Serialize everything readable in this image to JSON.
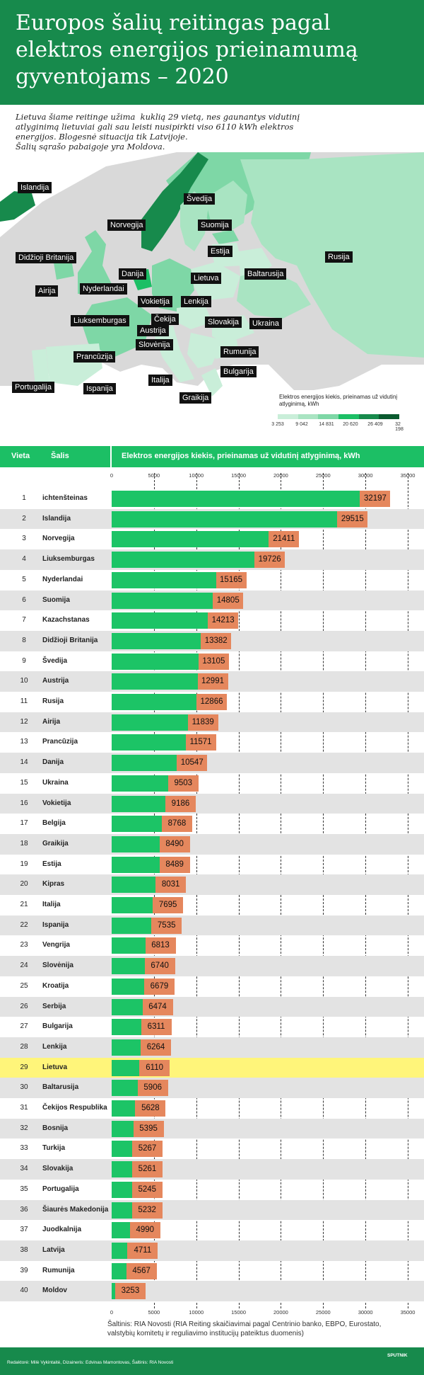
{
  "header": {
    "title": "Europos šalių reitingas pagal elektros energijos prieinamumą gyventojams – 2020"
  },
  "intro": {
    "lines": [
      "Lietuva šiame reitinge užima  kuklią 29 vietą, nes gaunantys vidutinį",
      "atlyginimą lietuviai gali sau leisti nusipirkti viso 6110 kWh elektros",
      "energijos. Blogesnė situacija tik Latvijoje.",
      "Šalių sąrašo pabaigoje yra Moldova."
    ]
  },
  "map": {
    "labels": [
      "Islandija",
      "Švedija",
      "Norvegija",
      "Suomija",
      "Rusija",
      "Estija",
      "Didžioji Britanija",
      "Danija",
      "Baltarusija",
      "Airija",
      "Nyderlandai",
      "Lietuva",
      "Vokietija",
      "Lenkija",
      "Čekija",
      "Liuksemburgas",
      "Slovakija",
      "Ukraina",
      "Austrija",
      "Slovėnija",
      "Rumunija",
      "Prancūzija",
      "Bulgarija",
      "Italija",
      "Portugalija",
      "Ispanija",
      "Graikija"
    ],
    "legend_title": "Elektros energijos kiekis, prieinamas už vidutinį atlyginimą, kWh",
    "legend_ticks": [
      "3 253",
      "9 042",
      "14 831",
      "20 620",
      "26 409",
      "32 198"
    ],
    "legend_colors": [
      "#c9eed9",
      "#a9e4c2",
      "#7ed7a6",
      "#1cbf65",
      "#178a4c",
      "#0a5a2f"
    ]
  },
  "table": {
    "col_rank": "Vieta",
    "col_country": "Šalis",
    "col_value": "Elektros energijos kiekis, prieinamas už vidutinį atlyginimą, kWh"
  },
  "colors": {
    "bar": "#1cc466",
    "label": "#e5875d",
    "highlight": "#fff57a",
    "header": "#178a4c"
  },
  "chart_data": {
    "type": "bar",
    "title": "Elektros energijos kiekis, prieinamas už vidutinį atlyginimą, kWh",
    "xlim": [
      0,
      35000
    ],
    "ticks": [
      "0",
      "5000",
      "10000",
      "15000",
      "20000",
      "25000",
      "30000",
      "35000"
    ],
    "highlight_rank": 29,
    "ranks": [
      "1",
      "2",
      "3",
      "4",
      "5",
      "6",
      "7",
      "8",
      "9",
      "10",
      "11",
      "12",
      "13",
      "14",
      "15",
      "16",
      "17",
      "18",
      "19",
      "20",
      "21",
      "22",
      "23",
      "24",
      "25",
      "26",
      "27",
      "28",
      "29",
      "30",
      "31",
      "32",
      "33",
      "34",
      "35",
      "36",
      "37",
      "38",
      "39",
      "40"
    ],
    "categories": [
      "ichtenšteinas",
      "Islandija",
      "Norvegija",
      "Liuksemburgas",
      "Nyderlandai",
      "Suomija",
      "Kazachstanas",
      "Didžioji Britanija",
      "Švedija",
      "Austrija",
      "Rusija",
      "Airija",
      "Prancūzija",
      "Danija",
      "Ukraina",
      "Vokietija",
      "Belgija",
      "Graikija",
      "Estija",
      "Kipras",
      "Italija",
      "Ispanija",
      "Vengrija",
      "Slovėnija",
      "Kroatija",
      "Serbija",
      "Bulgarija",
      "Lenkija",
      "Lietuva",
      "Baltarusija",
      "Čekijos Respublika",
      "Bosnija",
      "Turkija",
      "Slovakija",
      "Portugalija",
      "Šiaurės Makedonija",
      "Juodkalnija",
      "Latvija",
      "Rumunija",
      "Moldov"
    ],
    "values": [
      32197,
      29515,
      21411,
      19726,
      15165,
      14805,
      14213,
      13382,
      13105,
      12991,
      12866,
      11839,
      11571,
      10547,
      9503,
      9186,
      8768,
      8490,
      8489,
      8031,
      7695,
      7535,
      6813,
      6740,
      6679,
      6474,
      6311,
      6264,
      6110,
      5906,
      5628,
      5395,
      5267,
      5261,
      5245,
      5232,
      4990,
      4711,
      4567,
      3253
    ]
  },
  "footer": {
    "source": "Šaltinis: RIA Novosti (RIA Reiting skaičiavimai pagal Centrinio banko, EBPO, Eurostato, valstybių komitetų ir reguliavimo institucijų pateiktus duomenis)",
    "credits": "Redaktorė: Milė Vykintaitė, Dizaineris: Edvinas Mamontovas, Šaltinis: RIA Novosti",
    "logo": "SPUTNIK"
  }
}
